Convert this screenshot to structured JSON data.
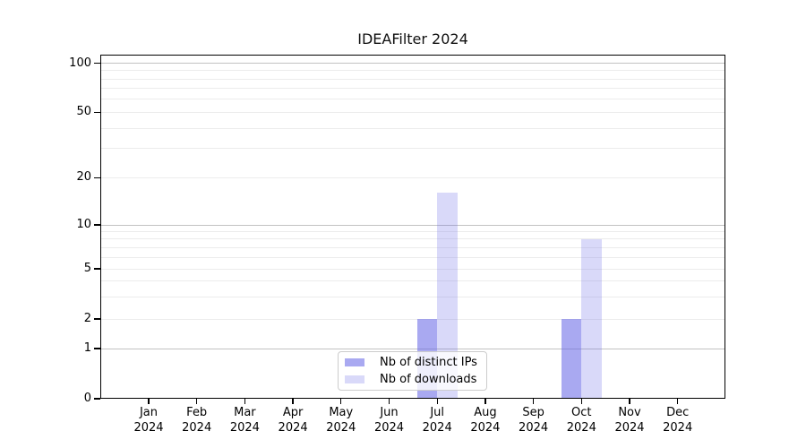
{
  "chart_data": {
    "type": "bar",
    "title": "IDEAFilter 2024",
    "categories": [
      "Jan",
      "Feb",
      "Mar",
      "Apr",
      "May",
      "Jun",
      "Jul",
      "Aug",
      "Sep",
      "Oct",
      "Nov",
      "Dec"
    ],
    "category_year": "2024",
    "series": [
      {
        "name": "Nb of distinct IPs",
        "color": "rgba(102,102,230,0.56)",
        "values": [
          0,
          0,
          0,
          0,
          0,
          0,
          2,
          0,
          0,
          2,
          0,
          0
        ]
      },
      {
        "name": "Nb of downloads",
        "color": "rgba(102,102,230,0.25)",
        "values": [
          0,
          0,
          0,
          0,
          0,
          0,
          16,
          0,
          0,
          8,
          0,
          0
        ]
      }
    ],
    "xlabel": "",
    "ylabel": "",
    "yscale": "symlog",
    "ylim": [
      0,
      112
    ],
    "yticks": [
      0,
      1,
      2,
      5,
      10,
      20,
      50,
      100
    ],
    "minor_grid_values": [
      3,
      4,
      6,
      7,
      8,
      9,
      30,
      40,
      60,
      70,
      80,
      90
    ],
    "decade_grid_values": [
      1,
      10,
      100
    ],
    "grid": "horizontal",
    "legend_position": "lower center"
  },
  "colors": {
    "background": "#ffffff",
    "spine": "#000000",
    "grid_minor": "#ececec",
    "grid_major": "#c2c2c2",
    "legend_border": "#cccccc",
    "text": "#000000"
  }
}
